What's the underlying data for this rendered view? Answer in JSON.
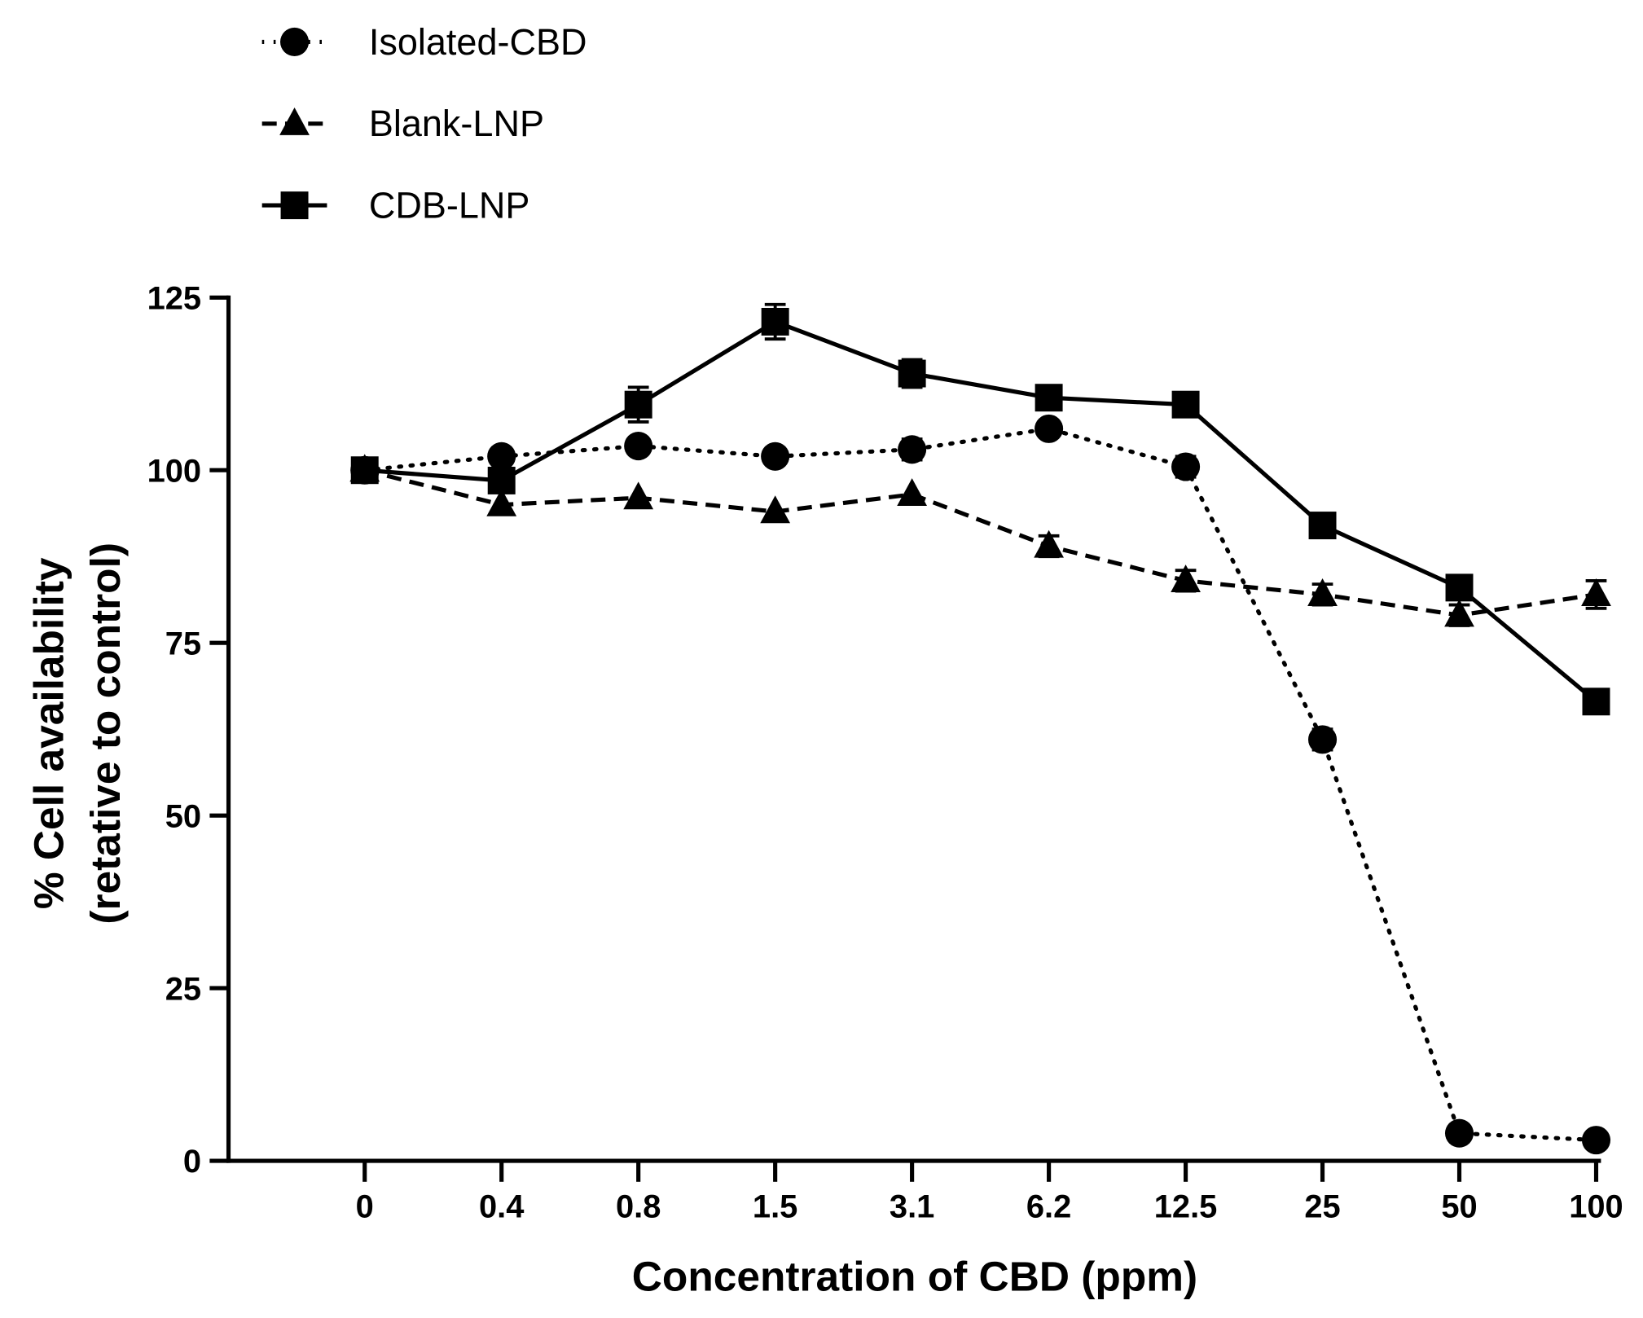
{
  "chart_data": {
    "type": "line",
    "title": "",
    "xlabel": "Concentration of CBD (ppm)",
    "ylabel_lines": [
      "% Cell availability",
      "(retative to control)"
    ],
    "categories": [
      "0",
      "0.4",
      "0.8",
      "1.5",
      "3.1",
      "6.2",
      "12.5",
      "25",
      "50",
      "100"
    ],
    "ylim": [
      0,
      125
    ],
    "yticks": [
      "0",
      "25",
      "50",
      "75",
      "100",
      "125"
    ],
    "grid": false,
    "legend_position": "top-left",
    "series": [
      {
        "name": "Isolated-CBD",
        "marker": "circle",
        "line": "dotted",
        "values": [
          100,
          102,
          103.5,
          102,
          103,
          106,
          100.5,
          61,
          4,
          3
        ],
        "errors": [
          0.5,
          0.5,
          0.5,
          0.5,
          1.5,
          0.5,
          1.5,
          1.5,
          0.5,
          0.5
        ]
      },
      {
        "name": "Blank-LNP",
        "marker": "triangle",
        "line": "dashed",
        "values": [
          100,
          95,
          96,
          94,
          96.5,
          89,
          84,
          82,
          79,
          82
        ],
        "errors": [
          0.5,
          0.5,
          0.5,
          0.5,
          0.5,
          1.5,
          1.5,
          1.5,
          1.5,
          2
        ]
      },
      {
        "name": "CDB-LNP",
        "marker": "square",
        "line": "solid",
        "values": [
          100,
          98.5,
          109.5,
          121.5,
          114,
          110.5,
          109.5,
          92,
          83,
          66.5
        ],
        "errors": [
          1,
          1,
          2.5,
          2.5,
          2,
          1,
          1,
          1,
          1,
          0.5
        ]
      }
    ]
  }
}
